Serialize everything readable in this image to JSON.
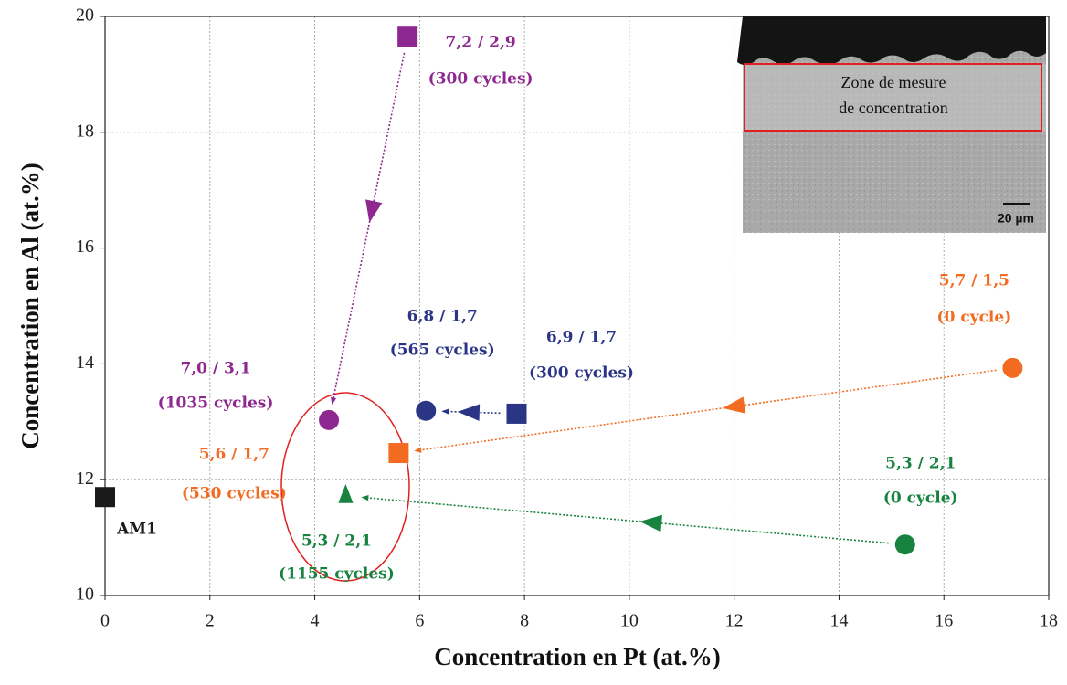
{
  "chart_data": {
    "type": "scatter",
    "x_label": "Concentration en Pt (at.%)",
    "y_label": "Concentration en Al (at.%)",
    "xlim": [
      0,
      18
    ],
    "xticks": [
      0,
      2,
      4,
      6,
      8,
      10,
      12,
      14,
      16,
      18
    ],
    "ylim": [
      10,
      20
    ],
    "yticks": [
      10,
      12,
      14,
      16,
      18,
      20
    ],
    "grid": true,
    "series": [
      {
        "color": "#8e278f",
        "x": [
          5.77,
          4.27
        ],
        "y": [
          19.65,
          13.03
        ],
        "markers": [
          "square",
          "circle"
        ],
        "labels": [
          [
            "7,2 / 2,9",
            "(300 cycles)"
          ],
          [
            "7,0 / 3,1",
            "(1035 cycles)"
          ]
        ]
      },
      {
        "color": "#2b3585",
        "x": [
          7.85,
          6.12
        ],
        "y": [
          13.14,
          13.19
        ],
        "markers": [
          "square",
          "circle"
        ],
        "labels": [
          [
            "6,9 / 1,7",
            "(300 cycles)"
          ],
          [
            "6,8 / 1,7",
            "(565 cycles)"
          ]
        ]
      },
      {
        "color": "#f26b21",
        "x": [
          17.31,
          5.6
        ],
        "y": [
          13.93,
          12.46
        ],
        "markers": [
          "circle",
          "square"
        ],
        "labels": [
          [
            "5,7 / 1,5",
            "(0 cycle)"
          ],
          [
            "5,6 / 1,7",
            "(530 cycles)"
          ]
        ]
      },
      {
        "color": "#17833f",
        "x": [
          15.26,
          4.59
        ],
        "y": [
          10.88,
          11.72
        ],
        "markers": [
          "circle",
          "triangle"
        ],
        "labels": [
          [
            "5,3 / 2,1",
            "(0 cycle)"
          ],
          [
            "5,3 / 2,1",
            "(1155 cycles)"
          ]
        ]
      },
      {
        "color": "#1a1a1a",
        "x": [
          0
        ],
        "y": [
          11.7
        ],
        "markers": [
          "square"
        ],
        "labels": [
          [
            "AM1"
          ]
        ]
      }
    ],
    "inset": {
      "zone_label": [
        "Zone de mesure",
        "de concentration"
      ],
      "scale": "20 µm"
    }
  }
}
